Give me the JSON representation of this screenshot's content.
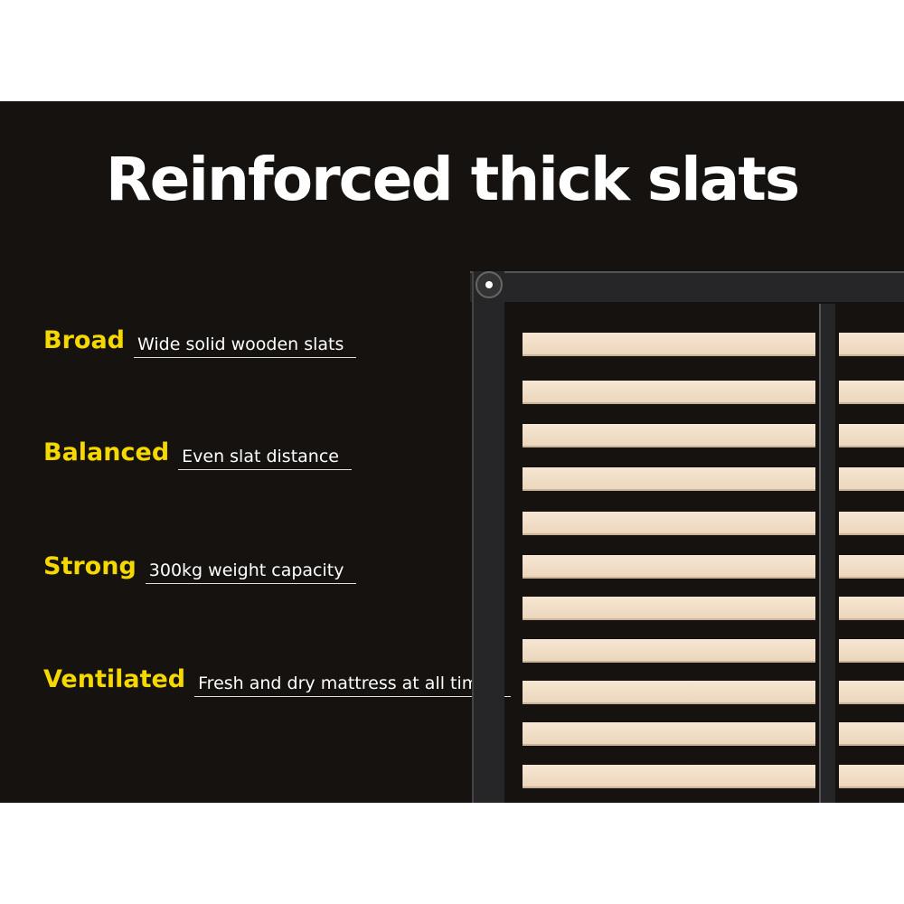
{
  "title": "Reinforced thick slats",
  "features": [
    {
      "label": "Broad",
      "text": "Wide solid wooden slats"
    },
    {
      "label": "Balanced",
      "text": "Even slat distance"
    },
    {
      "label": "Strong",
      "text": "300kg weight capacity"
    },
    {
      "label": "Ventilated",
      "text": "Fresh and dry mattress at all times"
    }
  ],
  "colors": {
    "background": "#15120f",
    "accent": "#f5d800",
    "slat": "#f0dcc4"
  }
}
